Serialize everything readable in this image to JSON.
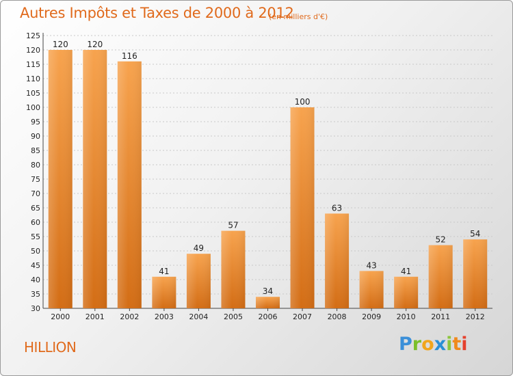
{
  "header": {
    "title": "Autres Impôts et Taxes de 2000 à 2012",
    "unit": "(en milliers d'€)"
  },
  "footer": {
    "commune": "HILLION",
    "brand": {
      "p": "P",
      "r": "r",
      "o": "o",
      "x": "x",
      "i1": "i",
      "t": "t",
      "i2": "i"
    }
  },
  "colors": {
    "bar_light": "#f7a04a",
    "bar_dark": "#d56f17",
    "accent": "#e06a1c"
  },
  "chart_data": {
    "type": "bar",
    "categories": [
      "2000",
      "2001",
      "2002",
      "2003",
      "2004",
      "2005",
      "2006",
      "2007",
      "2008",
      "2009",
      "2010",
      "2011",
      "2012"
    ],
    "values": [
      120,
      120,
      116,
      41,
      49,
      57,
      34,
      100,
      63,
      43,
      41,
      52,
      54
    ],
    "ylim": [
      30,
      125
    ],
    "yticks": [
      30,
      35,
      40,
      45,
      50,
      55,
      60,
      65,
      70,
      75,
      80,
      85,
      90,
      95,
      100,
      105,
      110,
      115,
      120,
      125
    ],
    "grid": true
  }
}
